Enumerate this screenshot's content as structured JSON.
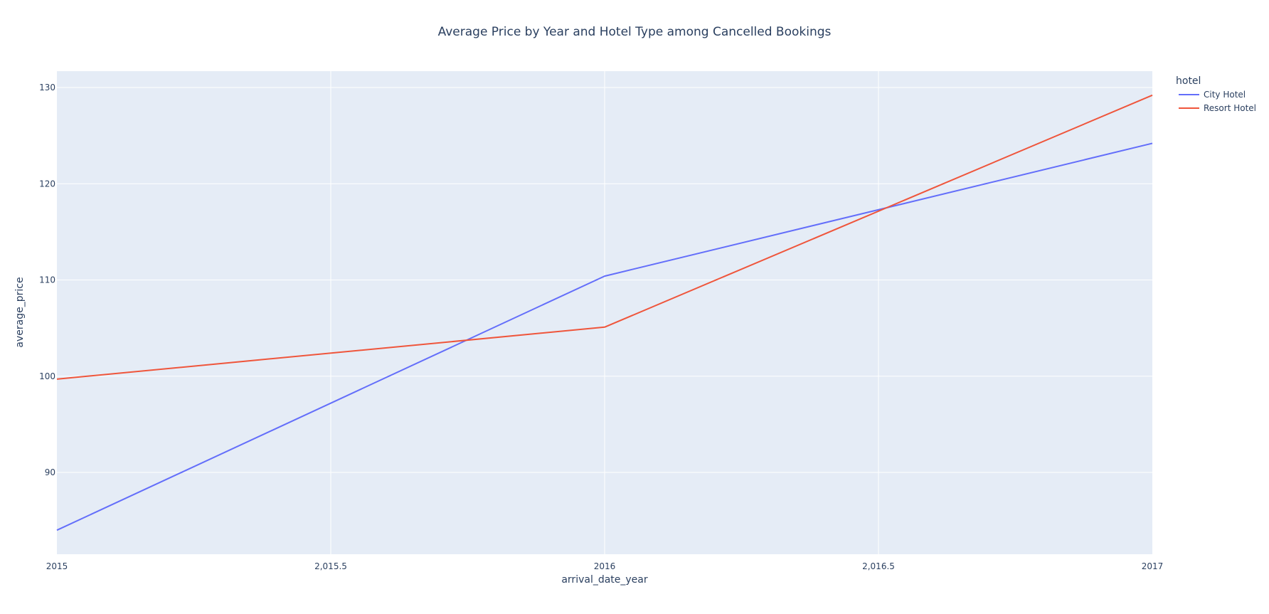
{
  "chart_data": {
    "type": "line",
    "title": "Average Price by Year and Hotel Type among Cancelled Bookings",
    "xlabel": "arrival_date_year",
    "ylabel": "average_price",
    "xlim": [
      2015,
      2017
    ],
    "ylim": [
      81.5,
      131.7
    ],
    "x_ticks": [
      2015,
      2015.5,
      2016,
      2016.5,
      2017
    ],
    "x_tick_labels": [
      "2015",
      "2,015.5",
      "2016",
      "2,016.5",
      "2017"
    ],
    "y_ticks": [
      90,
      100,
      110,
      120,
      130
    ],
    "y_tick_labels": [
      "90",
      "100",
      "110",
      "120",
      "130"
    ],
    "grid": true,
    "legend": {
      "title": "hotel",
      "position": "top-right, outside plot"
    },
    "colors": {
      "plot_bg": "#E5ECF6",
      "grid": "#FFFFFF",
      "text": "#2A3F5F"
    },
    "series": [
      {
        "name": "City Hotel",
        "color": "#636EFA",
        "x": [
          2015,
          2016,
          2017
        ],
        "y": [
          84.0,
          110.4,
          124.2
        ]
      },
      {
        "name": "Resort Hotel",
        "color": "#EF553B",
        "x": [
          2015,
          2016,
          2017
        ],
        "y": [
          99.7,
          105.1,
          129.2
        ]
      }
    ]
  }
}
